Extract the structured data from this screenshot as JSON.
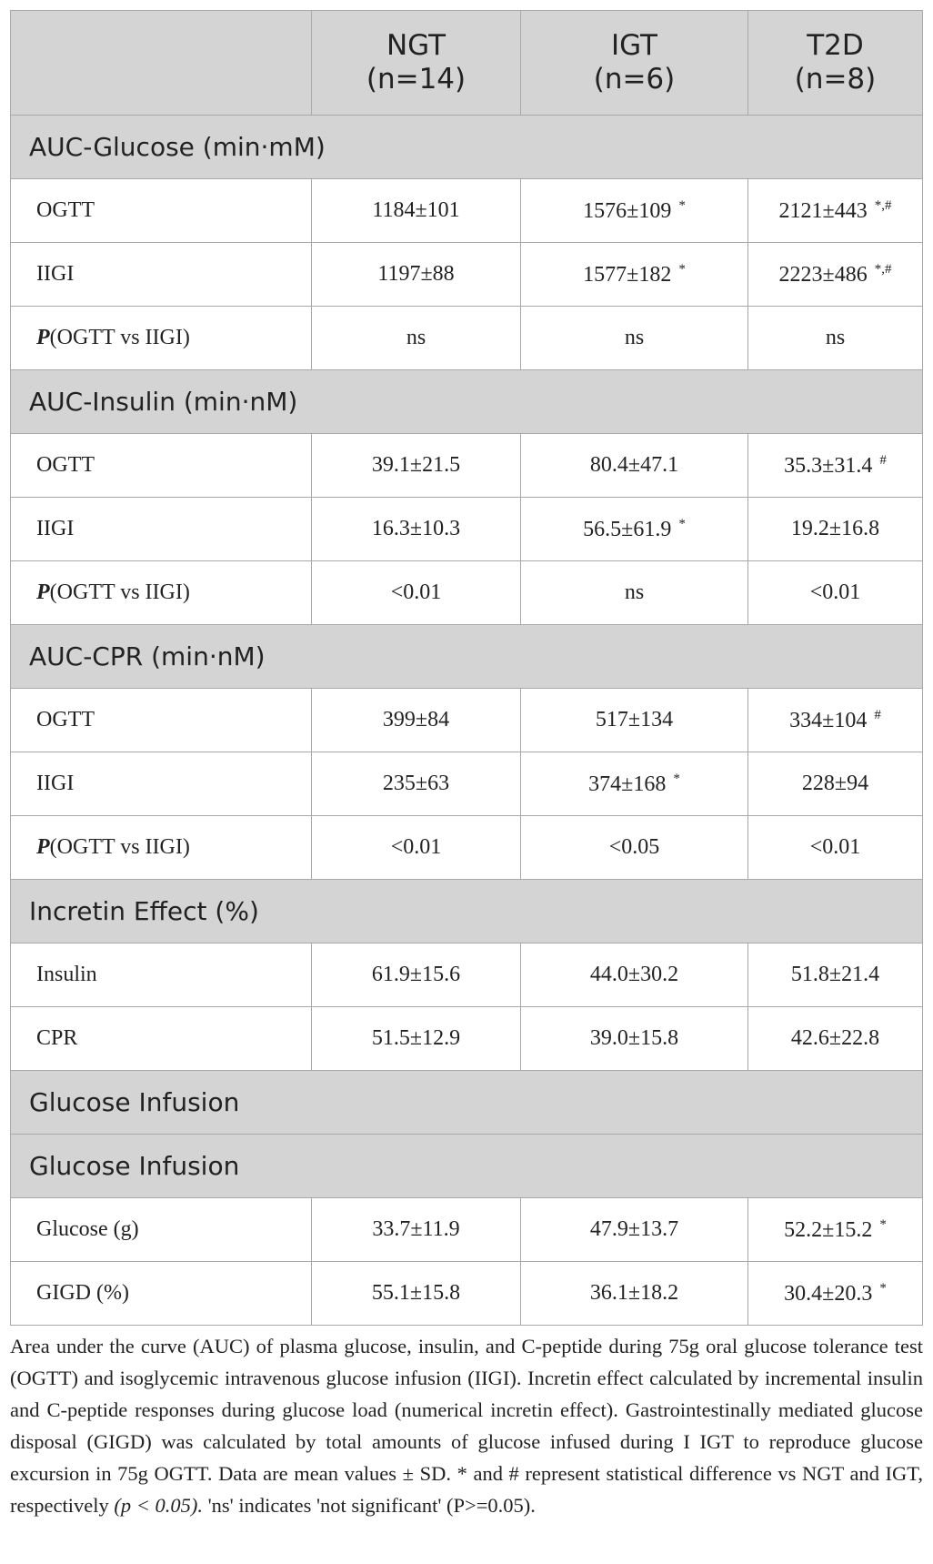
{
  "table": {
    "columns": [
      {
        "name": "NGT",
        "n": "(n=14)"
      },
      {
        "name": "IGT",
        "n": "(n=6)"
      },
      {
        "name": "T2D",
        "n": "(n=8)"
      }
    ],
    "sections": [
      {
        "title": "AUC-Glucose (min·mM)",
        "rows": [
          {
            "label": "OGTT",
            "cells": [
              {
                "text": "1184±101"
              },
              {
                "text": "1576±109",
                "sup": "*"
              },
              {
                "text": "2121±443",
                "sup": "*,#"
              }
            ]
          },
          {
            "label": "IIGI",
            "cells": [
              {
                "text": "1197±88"
              },
              {
                "text": "1577±182",
                "sup": "*"
              },
              {
                "text": "2223±486",
                "sup": "*,#"
              }
            ]
          },
          {
            "label_em": "P",
            "label": "(OGTT vs IIGI)",
            "cells": [
              {
                "text": "ns"
              },
              {
                "text": "ns"
              },
              {
                "text": "ns"
              }
            ]
          }
        ]
      },
      {
        "title": "AUC-Insulin (min·nM)",
        "rows": [
          {
            "label": "OGTT",
            "cells": [
              {
                "text": "39.1±21.5"
              },
              {
                "text": "80.4±47.1"
              },
              {
                "text": "35.3±31.4",
                "sup": "#"
              }
            ]
          },
          {
            "label": "IIGI",
            "cells": [
              {
                "text": "16.3±10.3"
              },
              {
                "text": "56.5±61.9",
                "sup": "*"
              },
              {
                "text": "19.2±16.8"
              }
            ]
          },
          {
            "label_em": "P",
            "label": "(OGTT vs IIGI)",
            "cells": [
              {
                "text": "<0.01"
              },
              {
                "text": "ns"
              },
              {
                "text": "<0.01"
              }
            ]
          }
        ]
      },
      {
        "title": "AUC-CPR (min·nM)",
        "rows": [
          {
            "label": "OGTT",
            "cells": [
              {
                "text": "399±84"
              },
              {
                "text": "517±134"
              },
              {
                "text": "334±104",
                "sup": "#"
              }
            ]
          },
          {
            "label": "IIGI",
            "cells": [
              {
                "text": "235±63"
              },
              {
                "text": "374±168",
                "sup": "*"
              },
              {
                "text": "228±94"
              }
            ]
          },
          {
            "label_em": "P",
            "label": "(OGTT vs IIGI)",
            "cells": [
              {
                "text": "<0.01"
              },
              {
                "text": "<0.05"
              },
              {
                "text": "<0.01"
              }
            ]
          }
        ]
      },
      {
        "title": "Incretin Effect (%)",
        "rows": [
          {
            "label": "Insulin",
            "cells": [
              {
                "text": "61.9±15.6"
              },
              {
                "text": "44.0±30.2"
              },
              {
                "text": "51.8±21.4"
              }
            ]
          },
          {
            "label": "CPR",
            "cells": [
              {
                "text": "51.5±12.9"
              },
              {
                "text": "39.0±15.8"
              },
              {
                "text": "42.6±22.8"
              }
            ]
          }
        ]
      },
      {
        "title": "Glucose Infusion",
        "rows": []
      },
      {
        "title": "Glucose Infusion",
        "rows": [
          {
            "label": "Glucose (g)",
            "cells": [
              {
                "text": "33.7±11.9"
              },
              {
                "text": "47.9±13.7"
              },
              {
                "text": "52.2±15.2",
                "sup": "*"
              }
            ]
          },
          {
            "label": "GIGD (%)",
            "cells": [
              {
                "text": "55.1±15.8"
              },
              {
                "text": "36.1±18.2"
              },
              {
                "text": "30.4±20.3",
                "sup": "*"
              }
            ]
          }
        ]
      }
    ]
  },
  "caption": {
    "text": "Area under the curve (AUC) of plasma glucose, insulin, and C-peptide during 75g oral glucose tolerance test (OGTT) and isoglycemic intravenous glucose infusion (IIGI). Incretin effect calculated by incremental insulin and C-peptide responses during glucose load (numerical incretin effect). Gastrointestinally mediated glucose disposal (GIGD) was calculated by total amounts of glucose infused during I IGT to reproduce glucose excursion in 75g OGTT. Data are mean values ± SD. * and # represent statistical difference vs NGT and IGT, respectively ",
    "italic": "(p < 0.05).",
    "tail": " 'ns' indicates 'not significant' (P>=0.05)."
  }
}
